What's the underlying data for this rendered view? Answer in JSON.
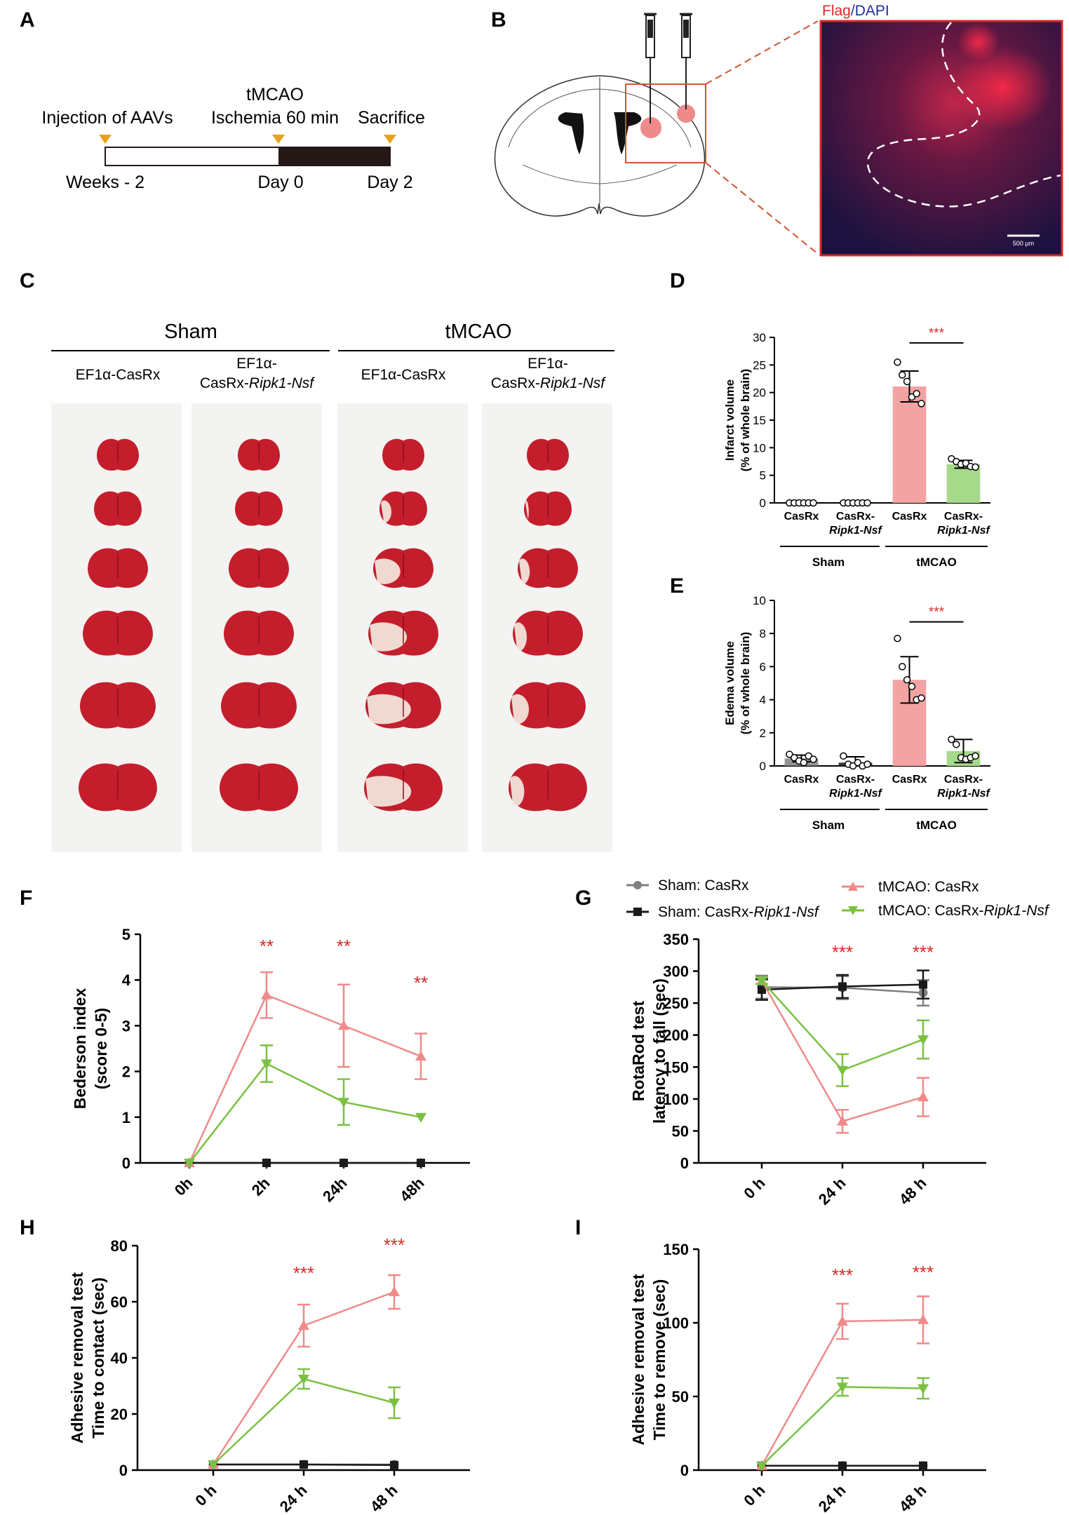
{
  "panel_letters": [
    "A",
    "B",
    "C",
    "D",
    "E",
    "F",
    "G",
    "H",
    "I"
  ],
  "panelA": {
    "top_labels": [
      "Injection of AAVs",
      "tMCAO",
      "Ischemia 60 min",
      "Sacrifice"
    ],
    "bottom_labels": [
      "Weeks - 2",
      "Day 0",
      "Day 2"
    ],
    "marker_color": "#e8a21a",
    "bar_colors": {
      "pre": "#ffffff",
      "post": "#231816"
    }
  },
  "panelB": {
    "micro_title_flag": "Flag",
    "micro_title_sep": "/",
    "micro_title_dapi": "DAPI",
    "scalebar": "500 µm",
    "colors": {
      "flag": "#d42a2a",
      "dapi": "#1f2f9a",
      "box": "#d2532e",
      "injection": "#ef8a8a"
    }
  },
  "panelC": {
    "groups": [
      "Sham",
      "tMCAO"
    ],
    "columns": [
      {
        "line1": "EF1α-CasRx",
        "line2": "",
        "line2_italic": ""
      },
      {
        "line1": "EF1α-",
        "line2": "CasRx-",
        "line2_italic": "Ripk1-Nsf"
      },
      {
        "line1": "EF1α-CasRx",
        "line2": "",
        "line2_italic": ""
      },
      {
        "line1": "EF1α-",
        "line2": "CasRx-",
        "line2_italic": "Ripk1-Nsf"
      }
    ],
    "brain_color": "#c41e2c",
    "infarct_color": "#f2e9df"
  },
  "colors": {
    "sham_casrx": "#808080",
    "sham_ko": "#1a1a1a",
    "tmcao_casrx": "#f08a8a",
    "tmcao_ko": "#7ac143",
    "bar_tmcao_casrx": "#f4a3a3",
    "bar_tmcao_ko": "#a6d98a",
    "sig": "#d42a2a"
  },
  "bar_xaxis": {
    "labels": [
      {
        "l1": "CasRx",
        "l2": ""
      },
      {
        "l1": "CasRx-",
        "l2": "Ripk1-Nsf"
      },
      {
        "l1": "CasRx",
        "l2": ""
      },
      {
        "l1": "CasRx-",
        "l2": "Ripk1-Nsf"
      }
    ],
    "groups": [
      "Sham",
      "tMCAO"
    ]
  },
  "legend": {
    "sham_casrx": "Sham: CasRx",
    "sham_ko_prefix": "Sham: CasRx-",
    "sham_ko_italic": "Ripk1-Nsf",
    "tmcao_casrx": "tMCAO: CasRx",
    "tmcao_ko_prefix": "tMCAO: CasRx-",
    "tmcao_ko_italic": "Ripk1-Nsf"
  },
  "chart_data": [
    {
      "id": "D",
      "type": "bar",
      "ylabel_lines": [
        "Infarct volume",
        "(% of whole brain)"
      ],
      "ylim": [
        0,
        30
      ],
      "yticks": [
        0,
        5,
        10,
        15,
        20,
        25,
        30
      ],
      "categories": [
        "Sham CasRx",
        "Sham CasRx-Ripk1-Nsf",
        "tMCAO CasRx",
        "tMCAO CasRx-Ripk1-Nsf"
      ],
      "values": [
        0,
        0,
        21.1,
        7.0
      ],
      "errors": [
        0,
        0,
        2.8,
        0.7
      ],
      "points": [
        [
          0,
          0,
          0,
          0,
          0,
          0
        ],
        [
          0,
          0,
          0,
          0,
          0,
          0
        ],
        [
          25.5,
          23.2,
          22.0,
          19.2,
          19.8,
          18.0
        ],
        [
          8.0,
          7.5,
          7.0,
          7.2,
          6.6,
          6.5
        ]
      ],
      "significance": {
        "text": "***",
        "from": 2,
        "to": 3,
        "y": 29
      }
    },
    {
      "id": "E",
      "type": "bar",
      "ylabel_lines": [
        "Edema volume",
        "(% of whole brain)"
      ],
      "ylim": [
        0,
        10
      ],
      "yticks": [
        0,
        2,
        4,
        6,
        8,
        10
      ],
      "categories": [
        "Sham CasRx",
        "Sham CasRx-Ripk1-Nsf",
        "tMCAO CasRx",
        "tMCAO CasRx-Ripk1-Nsf"
      ],
      "values": [
        0.45,
        0.2,
        5.2,
        0.9
      ],
      "errors": [
        0.2,
        0.35,
        1.4,
        0.7
      ],
      "points": [
        [
          0.7,
          0.5,
          0.3,
          0.2,
          0.6,
          0.4
        ],
        [
          0.6,
          0.1,
          0.0,
          0.2,
          0.0,
          0.1
        ],
        [
          7.7,
          6.0,
          5.2,
          4.8,
          4.0,
          4.1
        ],
        [
          1.6,
          1.3,
          0.5,
          0.4,
          0.5,
          0.6
        ]
      ],
      "significance": {
        "text": "***",
        "from": 2,
        "to": 3,
        "y": 8.7
      }
    },
    {
      "id": "F",
      "type": "line",
      "ylabel_lines": [
        "Bederson index",
        "(score 0-5)"
      ],
      "categories": [
        "0h",
        "2h",
        "24h",
        "48h"
      ],
      "ylim": [
        0,
        5
      ],
      "yticks": [
        0,
        1,
        2,
        3,
        4,
        5
      ],
      "series": [
        {
          "key": "sham_casrx",
          "name": "Sham: CasRx",
          "marker": "circle",
          "values": [
            0,
            0,
            0,
            0
          ],
          "errors": [
            0,
            0,
            0,
            0
          ]
        },
        {
          "key": "sham_ko",
          "name": "Sham: CasRx-Ripk1-Nsf",
          "marker": "square",
          "values": [
            0,
            0,
            0,
            0
          ],
          "errors": [
            0,
            0,
            0,
            0
          ]
        },
        {
          "key": "tmcao_casrx",
          "name": "tMCAO: CasRx",
          "marker": "triangle-up",
          "values": [
            0,
            3.67,
            3.0,
            2.33
          ],
          "errors": [
            0,
            0.5,
            0.9,
            0.5
          ]
        },
        {
          "key": "tmcao_ko",
          "name": "tMCAO: CasRx-Ripk1-Nsf",
          "marker": "triangle-down",
          "values": [
            0,
            2.17,
            1.33,
            1.0
          ],
          "errors": [
            0,
            0.4,
            0.5,
            0
          ]
        }
      ],
      "significance": [
        {
          "cat": 1,
          "text": "**",
          "y": 4.6
        },
        {
          "cat": 2,
          "text": "**",
          "y": 4.6
        },
        {
          "cat": 3,
          "text": "**",
          "y": 3.8
        }
      ]
    },
    {
      "id": "G",
      "type": "line",
      "ylabel_lines": [
        "RotaRod test",
        "latency to fall (sec)"
      ],
      "categories": [
        "0 h",
        "24 h",
        "48 h"
      ],
      "ylim": [
        0,
        350
      ],
      "yticks": [
        0,
        50,
        100,
        150,
        200,
        250,
        300,
        350
      ],
      "series": [
        {
          "key": "sham_casrx",
          "name": "Sham: CasRx",
          "marker": "circle",
          "values": [
            275,
            274,
            266
          ],
          "errors": [
            18,
            18,
            20
          ]
        },
        {
          "key": "sham_ko",
          "name": "Sham: CasRx-Ripk1-Nsf",
          "marker": "square",
          "values": [
            271,
            276,
            279
          ],
          "errors": [
            16,
            18,
            22
          ]
        },
        {
          "key": "tmcao_casrx",
          "name": "tMCAO: CasRx",
          "marker": "triangle-up",
          "values": [
            285,
            65,
            103
          ],
          "errors": [
            5,
            18,
            30
          ]
        },
        {
          "key": "tmcao_ko",
          "name": "tMCAO: CasRx-Ripk1-Nsf",
          "marker": "triangle-down",
          "values": [
            285,
            145,
            193
          ],
          "errors": [
            5,
            25,
            30
          ]
        }
      ],
      "significance": [
        {
          "cat": 1,
          "text": "***",
          "y": 320
        },
        {
          "cat": 2,
          "text": "***",
          "y": 320
        }
      ]
    },
    {
      "id": "H",
      "type": "line",
      "ylabel_lines": [
        "Adhesive removal test",
        "Time to contact (sec)"
      ],
      "categories": [
        "0 h",
        "24 h",
        "48 h"
      ],
      "ylim": [
        0,
        80
      ],
      "yticks": [
        0,
        20,
        40,
        60,
        80
      ],
      "series": [
        {
          "key": "sham_casrx",
          "name": "Sham: CasRx",
          "marker": "circle",
          "values": [
            2,
            2,
            2
          ],
          "errors": [
            0,
            0,
            0
          ]
        },
        {
          "key": "sham_ko",
          "name": "Sham: CasRx-Ripk1-Nsf",
          "marker": "square",
          "values": [
            2,
            2,
            1.8
          ],
          "errors": [
            0,
            0,
            0
          ]
        },
        {
          "key": "tmcao_casrx",
          "name": "tMCAO: CasRx",
          "marker": "triangle-up",
          "values": [
            2,
            51.5,
            63.5
          ],
          "errors": [
            0,
            7.5,
            6
          ]
        },
        {
          "key": "tmcao_ko",
          "name": "tMCAO: CasRx-Ripk1-Nsf",
          "marker": "triangle-down",
          "values": [
            2,
            32.5,
            24
          ],
          "errors": [
            0,
            3.5,
            5.5
          ]
        }
      ],
      "significance": [
        {
          "cat": 1,
          "text": "***",
          "y": 68
        },
        {
          "cat": 2,
          "text": "***",
          "y": 78
        }
      ]
    },
    {
      "id": "I",
      "type": "line",
      "ylabel_lines": [
        "Adhesive removal test",
        "Time to remove (sec)"
      ],
      "categories": [
        "0 h",
        "24 h",
        "48 h"
      ],
      "ylim": [
        0,
        150
      ],
      "yticks": [
        0,
        50,
        100,
        150
      ],
      "series": [
        {
          "key": "sham_casrx",
          "name": "Sham: CasRx",
          "marker": "circle",
          "values": [
            3,
            3,
            3
          ],
          "errors": [
            0,
            0,
            0
          ]
        },
        {
          "key": "sham_ko",
          "name": "Sham: CasRx-Ripk1-Nsf",
          "marker": "square",
          "values": [
            3,
            3,
            3
          ],
          "errors": [
            0,
            0,
            0
          ]
        },
        {
          "key": "tmcao_casrx",
          "name": "tMCAO: CasRx",
          "marker": "triangle-up",
          "values": [
            3,
            101,
            102
          ],
          "errors": [
            0,
            12,
            16
          ]
        },
        {
          "key": "tmcao_ko",
          "name": "tMCAO: CasRx-Ripk1-Nsf",
          "marker": "triangle-down",
          "values": [
            3,
            56.5,
            55.5
          ],
          "errors": [
            0,
            6,
            7
          ]
        }
      ],
      "significance": [
        {
          "cat": 1,
          "text": "***",
          "y": 128
        },
        {
          "cat": 2,
          "text": "***",
          "y": 130
        }
      ]
    }
  ]
}
